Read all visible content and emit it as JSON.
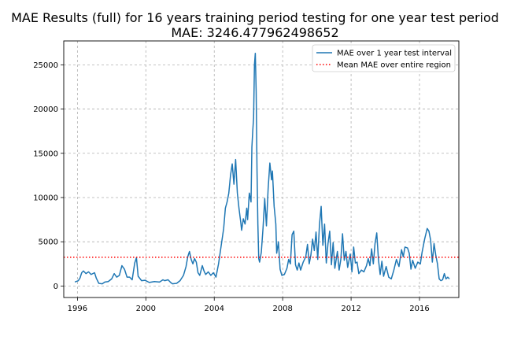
{
  "chart_data": {
    "type": "line",
    "title": "MAE Results (full) for 16 years training period testing for one year test period",
    "subtitle": "MAE: 3246.477962498652",
    "xlabel": "",
    "ylabel": "",
    "xlim": [
      1995.2,
      2018.3
    ],
    "ylim": [
      -1300,
      27700
    ],
    "x_ticks": [
      1996,
      2000,
      2004,
      2008,
      2012,
      2016
    ],
    "y_ticks": [
      0,
      5000,
      10000,
      15000,
      20000,
      25000
    ],
    "grid": true,
    "legend_position": "upper-right",
    "series": [
      {
        "name": "MAE over 1 year test interval",
        "style": "solid",
        "color": "#1f77b4",
        "points": [
          [
            1995.85,
            450
          ],
          [
            1996.05,
            600
          ],
          [
            1996.15,
            900
          ],
          [
            1996.25,
            1500
          ],
          [
            1996.35,
            1700
          ],
          [
            1996.5,
            1400
          ],
          [
            1996.65,
            1600
          ],
          [
            1996.8,
            1300
          ],
          [
            1997.0,
            1500
          ],
          [
            1997.1,
            900
          ],
          [
            1997.25,
            300
          ],
          [
            1997.45,
            250
          ],
          [
            1997.6,
            450
          ],
          [
            1997.8,
            500
          ],
          [
            1998.0,
            800
          ],
          [
            1998.15,
            1400
          ],
          [
            1998.3,
            1000
          ],
          [
            1998.45,
            1200
          ],
          [
            1998.6,
            2300
          ],
          [
            1998.75,
            1900
          ],
          [
            1998.9,
            1000
          ],
          [
            1999.05,
            1000
          ],
          [
            1999.2,
            700
          ],
          [
            1999.35,
            2600
          ],
          [
            1999.45,
            3200
          ],
          [
            1999.55,
            1100
          ],
          [
            1999.75,
            600
          ],
          [
            1999.95,
            650
          ],
          [
            2000.2,
            400
          ],
          [
            2000.5,
            500
          ],
          [
            2000.8,
            450
          ],
          [
            2001.0,
            700
          ],
          [
            2001.1,
            600
          ],
          [
            2001.3,
            700
          ],
          [
            2001.45,
            400
          ],
          [
            2001.55,
            250
          ],
          [
            2001.8,
            300
          ],
          [
            2002.0,
            600
          ],
          [
            2002.2,
            1200
          ],
          [
            2002.35,
            2200
          ],
          [
            2002.45,
            3300
          ],
          [
            2002.55,
            3900
          ],
          [
            2002.65,
            3000
          ],
          [
            2002.75,
            2500
          ],
          [
            2002.85,
            3100
          ],
          [
            2002.95,
            2700
          ],
          [
            2003.05,
            1500
          ],
          [
            2003.15,
            1200
          ],
          [
            2003.3,
            2300
          ],
          [
            2003.4,
            1700
          ],
          [
            2003.5,
            1300
          ],
          [
            2003.65,
            1600
          ],
          [
            2003.8,
            1200
          ],
          [
            2003.95,
            1500
          ],
          [
            2004.1,
            1000
          ],
          [
            2004.25,
            2500
          ],
          [
            2004.4,
            4500
          ],
          [
            2004.55,
            6500
          ],
          [
            2004.65,
            8800
          ],
          [
            2004.75,
            9500
          ],
          [
            2004.85,
            10500
          ],
          [
            2004.95,
            12500
          ],
          [
            2005.05,
            13800
          ],
          [
            2005.15,
            11500
          ],
          [
            2005.25,
            14300
          ],
          [
            2005.35,
            10500
          ],
          [
            2005.45,
            8700
          ],
          [
            2005.55,
            7200
          ],
          [
            2005.6,
            6300
          ],
          [
            2005.7,
            7600
          ],
          [
            2005.8,
            7000
          ],
          [
            2005.9,
            8800
          ],
          [
            2005.95,
            7500
          ],
          [
            2006.05,
            10500
          ],
          [
            2006.15,
            9500
          ],
          [
            2006.2,
            15700
          ],
          [
            2006.25,
            17500
          ],
          [
            2006.3,
            19000
          ],
          [
            2006.35,
            25000
          ],
          [
            2006.4,
            26300
          ],
          [
            2006.45,
            22000
          ],
          [
            2006.5,
            13000
          ],
          [
            2006.55,
            7000
          ],
          [
            2006.6,
            3100
          ],
          [
            2006.65,
            2700
          ],
          [
            2006.75,
            3800
          ],
          [
            2006.85,
            6500
          ],
          [
            2006.95,
            9900
          ],
          [
            2007.05,
            6800
          ],
          [
            2007.15,
            11000
          ],
          [
            2007.25,
            13900
          ],
          [
            2007.35,
            12000
          ],
          [
            2007.4,
            13000
          ],
          [
            2007.5,
            9000
          ],
          [
            2007.6,
            7000
          ],
          [
            2007.65,
            3700
          ],
          [
            2007.75,
            5000
          ],
          [
            2007.85,
            1900
          ],
          [
            2007.95,
            1200
          ],
          [
            2008.1,
            1300
          ],
          [
            2008.25,
            2000
          ],
          [
            2008.35,
            3000
          ],
          [
            2008.45,
            2500
          ],
          [
            2008.55,
            5800
          ],
          [
            2008.65,
            6200
          ],
          [
            2008.75,
            2400
          ],
          [
            2008.85,
            1800
          ],
          [
            2008.95,
            2600
          ],
          [
            2009.05,
            1800
          ],
          [
            2009.2,
            2700
          ],
          [
            2009.35,
            3300
          ],
          [
            2009.45,
            4700
          ],
          [
            2009.55,
            2500
          ],
          [
            2009.65,
            3500
          ],
          [
            2009.75,
            5300
          ],
          [
            2009.85,
            4000
          ],
          [
            2009.95,
            6100
          ],
          [
            2010.05,
            3000
          ],
          [
            2010.15,
            6900
          ],
          [
            2010.25,
            9000
          ],
          [
            2010.35,
            4600
          ],
          [
            2010.45,
            7000
          ],
          [
            2010.55,
            2600
          ],
          [
            2010.65,
            4800
          ],
          [
            2010.75,
            6200
          ],
          [
            2010.85,
            2400
          ],
          [
            2010.95,
            4900
          ],
          [
            2011.05,
            2000
          ],
          [
            2011.2,
            3900
          ],
          [
            2011.3,
            1800
          ],
          [
            2011.4,
            3000
          ],
          [
            2011.5,
            5900
          ],
          [
            2011.6,
            2900
          ],
          [
            2011.7,
            3900
          ],
          [
            2011.8,
            2100
          ],
          [
            2011.95,
            3600
          ],
          [
            2012.05,
            1600
          ],
          [
            2012.15,
            4400
          ],
          [
            2012.25,
            2600
          ],
          [
            2012.35,
            2700
          ],
          [
            2012.45,
            1400
          ],
          [
            2012.6,
            1800
          ],
          [
            2012.75,
            1600
          ],
          [
            2012.9,
            2300
          ],
          [
            2013.0,
            3100
          ],
          [
            2013.1,
            2300
          ],
          [
            2013.2,
            4200
          ],
          [
            2013.3,
            2500
          ],
          [
            2013.4,
            4800
          ],
          [
            2013.5,
            6000
          ],
          [
            2013.6,
            3000
          ],
          [
            2013.7,
            1300
          ],
          [
            2013.8,
            2800
          ],
          [
            2013.9,
            1100
          ],
          [
            2014.05,
            2200
          ],
          [
            2014.2,
            1000
          ],
          [
            2014.35,
            800
          ],
          [
            2014.5,
            1800
          ],
          [
            2014.65,
            3000
          ],
          [
            2014.8,
            2200
          ],
          [
            2014.95,
            4100
          ],
          [
            2015.05,
            3300
          ],
          [
            2015.15,
            4400
          ],
          [
            2015.3,
            4300
          ],
          [
            2015.4,
            3700
          ],
          [
            2015.5,
            1900
          ],
          [
            2015.6,
            2900
          ],
          [
            2015.75,
            2000
          ],
          [
            2015.9,
            2700
          ],
          [
            2016.05,
            2500
          ],
          [
            2016.15,
            3800
          ],
          [
            2016.3,
            5300
          ],
          [
            2016.45,
            6500
          ],
          [
            2016.55,
            6200
          ],
          [
            2016.65,
            5200
          ],
          [
            2016.75,
            2700
          ],
          [
            2016.85,
            4800
          ],
          [
            2016.95,
            3500
          ],
          [
            2017.05,
            2500
          ],
          [
            2017.15,
            800
          ],
          [
            2017.25,
            600
          ],
          [
            2017.35,
            700
          ],
          [
            2017.45,
            1400
          ],
          [
            2017.55,
            800
          ],
          [
            2017.65,
            1000
          ],
          [
            2017.75,
            800
          ]
        ]
      },
      {
        "name": "Mean MAE over entire region",
        "style": "dotted",
        "color": "#ff0000",
        "points": [
          [
            1995.2,
            3246.477962498652
          ],
          [
            2018.3,
            3246.477962498652
          ]
        ]
      }
    ]
  }
}
